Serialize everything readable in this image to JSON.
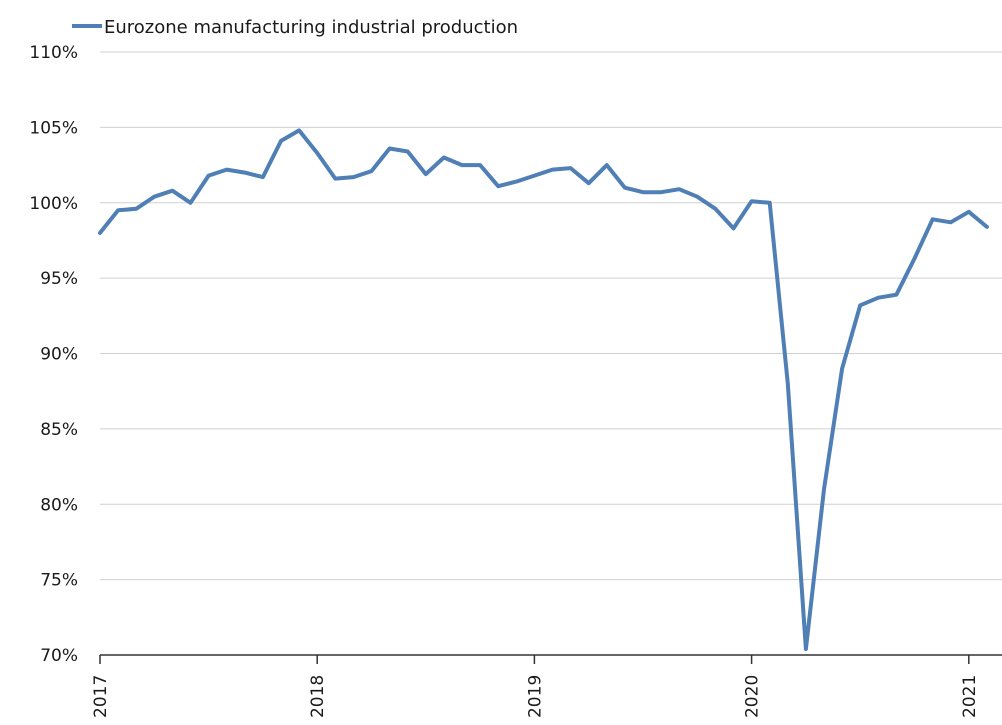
{
  "chart_data": {
    "type": "line",
    "title": "",
    "xlabel": "",
    "ylabel": "",
    "ylim": [
      70,
      110
    ],
    "y_ticks": [
      "70%",
      "75%",
      "80%",
      "85%",
      "90%",
      "95%",
      "100%",
      "105%",
      "110%"
    ],
    "x_ticks": [
      "2017",
      "2018",
      "2019",
      "2020",
      "2021"
    ],
    "grid": "horizontal",
    "legend": {
      "position": "top-left"
    },
    "colors": {
      "series": "#4f7fb5",
      "grid": "#d0d0d0",
      "axis": "#333333"
    },
    "series": [
      {
        "name": "Eurozone manufacturing industrial production",
        "x": [
          "2017-01",
          "2017-02",
          "2017-03",
          "2017-04",
          "2017-05",
          "2017-06",
          "2017-07",
          "2017-08",
          "2017-09",
          "2017-10",
          "2017-11",
          "2017-12",
          "2018-01",
          "2018-02",
          "2018-03",
          "2018-04",
          "2018-05",
          "2018-06",
          "2018-07",
          "2018-08",
          "2018-09",
          "2018-10",
          "2018-11",
          "2018-12",
          "2019-01",
          "2019-02",
          "2019-03",
          "2019-04",
          "2019-05",
          "2019-06",
          "2019-07",
          "2019-08",
          "2019-09",
          "2019-10",
          "2019-11",
          "2019-12",
          "2020-01",
          "2020-02",
          "2020-03",
          "2020-04",
          "2020-05",
          "2020-06",
          "2020-07",
          "2020-08",
          "2020-09",
          "2020-10",
          "2020-11",
          "2020-12",
          "2021-01",
          "2021-02"
        ],
        "values": [
          98.0,
          99.5,
          99.6,
          100.4,
          100.8,
          100.0,
          101.8,
          102.2,
          102.0,
          101.7,
          104.1,
          104.8,
          103.3,
          101.6,
          101.7,
          102.1,
          103.6,
          103.4,
          101.9,
          103.0,
          102.5,
          102.5,
          101.1,
          101.4,
          101.8,
          102.2,
          102.3,
          101.3,
          102.5,
          101.0,
          100.7,
          100.7,
          100.9,
          100.4,
          99.6,
          98.3,
          100.1,
          100.0,
          88.0,
          70.4,
          81.0,
          89.0,
          93.2,
          93.7,
          93.9,
          96.3,
          98.9,
          98.7,
          99.4,
          98.4
        ]
      }
    ]
  }
}
